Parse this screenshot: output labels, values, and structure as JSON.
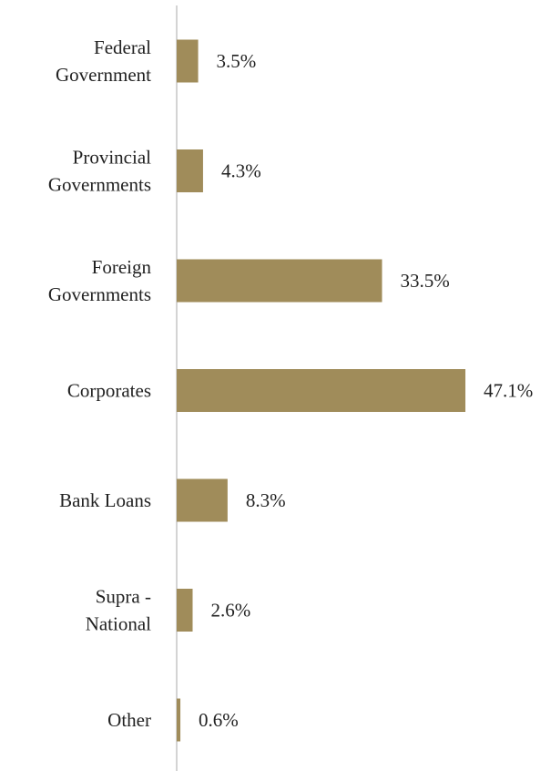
{
  "chart_data": {
    "type": "bar",
    "orientation": "horizontal",
    "categories": [
      [
        "Federal",
        "Government"
      ],
      [
        "Provincial",
        "Governments"
      ],
      [
        "Foreign",
        "Governments"
      ],
      [
        "Corporates"
      ],
      [
        "Bank Loans"
      ],
      [
        "Supra -",
        "National"
      ],
      [
        "Other"
      ]
    ],
    "values": [
      3.5,
      4.3,
      33.5,
      47.1,
      8.3,
      2.6,
      0.6
    ],
    "value_labels": [
      "3.5%",
      "4.3%",
      "33.5%",
      "47.1%",
      "8.3%",
      "2.6%",
      "0.6%"
    ],
    "xlim": [
      0,
      50
    ],
    "grid": false,
    "legend": "none",
    "bar_color": "#a08c5a",
    "axis_color": "#d4d4d4"
  }
}
